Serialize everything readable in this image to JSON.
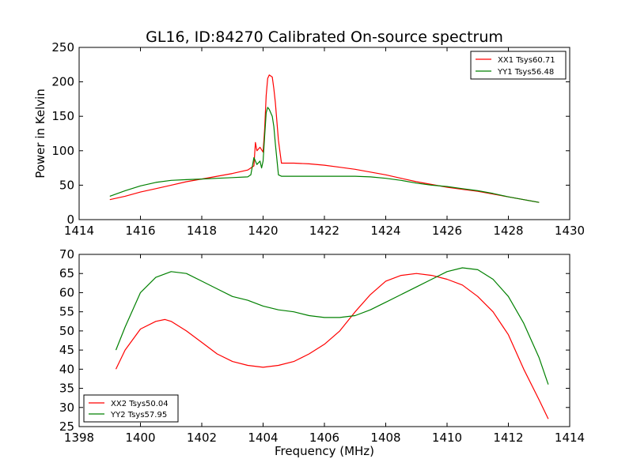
{
  "chart_data": [
    {
      "type": "line",
      "title": "GL16, ID:84270 Calibrated On-source spectrum",
      "xlabel": "",
      "ylabel": "Power in Kelvin",
      "xlim": [
        1414,
        1430
      ],
      "ylim": [
        0,
        250
      ],
      "xticks": [
        1414,
        1416,
        1418,
        1420,
        1422,
        1424,
        1426,
        1428,
        1430
      ],
      "yticks": [
        0,
        50,
        100,
        150,
        200,
        250
      ],
      "legend_position": "top-right",
      "grid": false,
      "series": [
        {
          "name": "XX1 Tsys60.71",
          "color": "#ff0000",
          "x": [
            1415.0,
            1415.5,
            1416.0,
            1416.5,
            1417.0,
            1417.5,
            1418.0,
            1418.5,
            1419.0,
            1419.5,
            1419.7,
            1419.75,
            1419.8,
            1419.9,
            1420.0,
            1420.05,
            1420.1,
            1420.15,
            1420.2,
            1420.3,
            1420.35,
            1420.4,
            1420.5,
            1420.6,
            1421.0,
            1421.5,
            1422.0,
            1422.5,
            1423.0,
            1423.5,
            1424.0,
            1424.5,
            1425.0,
            1425.5,
            1426.0,
            1426.5,
            1427.0,
            1427.5,
            1428.0,
            1428.5,
            1429.0
          ],
          "y": [
            29,
            34,
            40,
            45,
            50,
            55,
            59,
            63,
            67,
            72,
            78,
            112,
            100,
            105,
            98,
            130,
            180,
            205,
            210,
            207,
            190,
            170,
            115,
            82,
            82,
            81,
            79,
            76,
            73,
            69,
            65,
            60,
            55,
            51,
            47,
            44,
            41,
            37,
            33,
            29,
            25
          ]
        },
        {
          "name": "YY1 Tsys56.48",
          "color": "#008000",
          "x": [
            1415.0,
            1415.5,
            1416.0,
            1416.5,
            1417.0,
            1417.5,
            1418.0,
            1418.5,
            1419.0,
            1419.5,
            1419.6,
            1419.7,
            1419.8,
            1419.9,
            1419.95,
            1420.0,
            1420.05,
            1420.1,
            1420.15,
            1420.2,
            1420.3,
            1420.35,
            1420.4,
            1420.5,
            1420.6,
            1421.0,
            1421.5,
            1422.0,
            1422.5,
            1423.0,
            1423.5,
            1424.0,
            1424.5,
            1425.0,
            1425.5,
            1426.0,
            1426.5,
            1427.0,
            1427.5,
            1428.0,
            1428.5,
            1429.0
          ],
          "y": [
            34,
            42,
            49,
            54,
            57,
            58,
            59,
            60,
            61,
            62,
            65,
            90,
            80,
            85,
            75,
            85,
            120,
            155,
            163,
            160,
            150,
            135,
            110,
            65,
            63,
            63,
            63,
            63,
            63,
            63,
            62,
            60,
            57,
            53,
            50,
            48,
            45,
            42,
            38,
            33,
            29,
            25
          ]
        }
      ]
    },
    {
      "type": "line",
      "title": "",
      "xlabel": "Frequency (MHz)",
      "ylabel": "",
      "xlim": [
        1398,
        1414
      ],
      "ylim": [
        25,
        70
      ],
      "xticks": [
        1398,
        1400,
        1402,
        1404,
        1406,
        1408,
        1410,
        1412,
        1414
      ],
      "yticks": [
        25,
        30,
        35,
        40,
        45,
        50,
        55,
        60,
        65,
        70
      ],
      "legend_position": "bottom-left",
      "grid": false,
      "series": [
        {
          "name": "XX2 Tsys50.04",
          "color": "#ff0000",
          "x": [
            1399.2,
            1399.5,
            1400.0,
            1400.5,
            1400.8,
            1401.0,
            1401.5,
            1402.0,
            1402.5,
            1403.0,
            1403.5,
            1404.0,
            1404.5,
            1405.0,
            1405.5,
            1406.0,
            1406.5,
            1407.0,
            1407.5,
            1408.0,
            1408.5,
            1409.0,
            1409.5,
            1410.0,
            1410.5,
            1411.0,
            1411.5,
            1412.0,
            1412.5,
            1413.0,
            1413.3
          ],
          "y": [
            40,
            45,
            50.5,
            52.5,
            53,
            52.5,
            50,
            47,
            44,
            42,
            41,
            40.5,
            41,
            42,
            44,
            46.5,
            50,
            55,
            59.5,
            63,
            64.5,
            65,
            64.5,
            63.5,
            62,
            59,
            55,
            49,
            40,
            32,
            27
          ]
        },
        {
          "name": "YY2 Tsys57.95",
          "color": "#008000",
          "x": [
            1399.2,
            1399.5,
            1400.0,
            1400.5,
            1401.0,
            1401.5,
            1402.0,
            1402.5,
            1403.0,
            1403.5,
            1404.0,
            1404.5,
            1405.0,
            1405.5,
            1406.0,
            1406.5,
            1407.0,
            1407.5,
            1408.0,
            1408.5,
            1409.0,
            1409.5,
            1410.0,
            1410.5,
            1411.0,
            1411.5,
            1412.0,
            1412.5,
            1413.0,
            1413.3
          ],
          "y": [
            45,
            51,
            60,
            64,
            65.5,
            65,
            63,
            61,
            59,
            58,
            56.5,
            55.5,
            55,
            54,
            53.5,
            53.5,
            54,
            55.5,
            57.5,
            59.5,
            61.5,
            63.5,
            65.5,
            66.5,
            66,
            63.5,
            59,
            52,
            43,
            36
          ]
        }
      ]
    }
  ]
}
